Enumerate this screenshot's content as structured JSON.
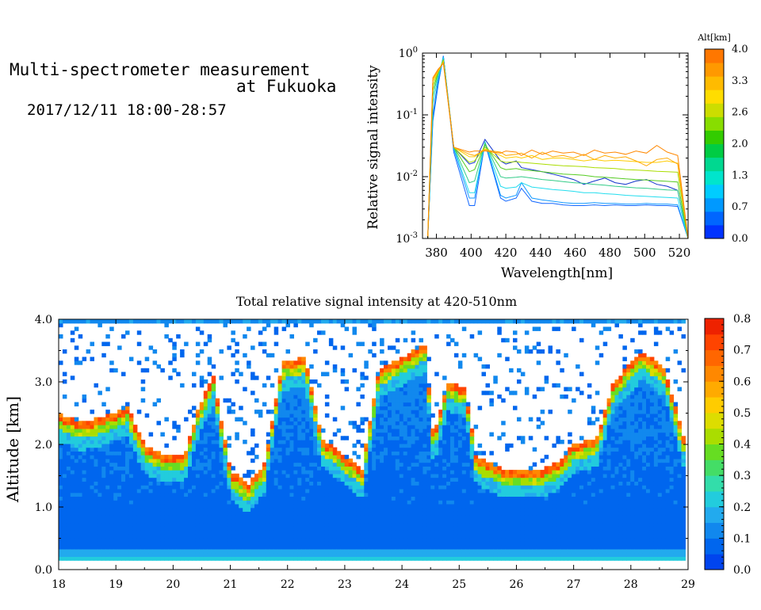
{
  "header": {
    "title_line1": "Multi-spectrometer measurement",
    "title_line2": "at Fukuoka",
    "datetime": "2017/12/11 18:00-28:57"
  },
  "chart_data": [
    {
      "type": "line",
      "xlabel": "Wavelength[nm]",
      "ylabel": "Relative signal intensity",
      "xlim": [
        372,
        525
      ],
      "ylim": [
        0.001,
        1
      ],
      "yscale": "log",
      "x_ticks": [
        "380",
        "400",
        "420",
        "440",
        "460",
        "480",
        "500",
        "520"
      ],
      "y_ticks": [
        "10^-3",
        "10^-2",
        "10^-1",
        "10^0"
      ],
      "x": [
        375,
        378,
        381,
        384,
        390,
        399,
        402,
        408,
        417,
        420,
        426,
        429,
        435,
        441,
        447,
        453,
        459,
        465,
        471,
        477,
        483,
        489,
        495,
        501,
        507,
        513,
        519,
        525
      ],
      "colorbar": {
        "label": "Alt[km]",
        "ticks": [
          "0.0",
          "0.7",
          "1.3",
          "2.0",
          "2.6",
          "3.3",
          "4.0"
        ],
        "colors": [
          "#0033ff",
          "#0066ff",
          "#0099ff",
          "#00ccff",
          "#00e5cc",
          "#00d890",
          "#00cc44",
          "#33cc00",
          "#88dd00",
          "#ccdd00",
          "#ffdd00",
          "#ffbb00",
          "#ff9900",
          "#ff7700"
        ]
      },
      "series": [
        {
          "color": "#1133cc",
          "values": [
            0.001,
            0.1,
            0.35,
            0.9,
            0.03,
            0.016,
            0.017,
            0.04,
            0.018,
            0.016,
            0.018,
            0.014,
            0.013,
            0.012,
            0.011,
            0.01,
            0.009,
            0.0075,
            0.0085,
            0.0095,
            0.008,
            0.0075,
            0.0085,
            0.009,
            0.0075,
            0.007,
            0.006,
            0.001
          ]
        },
        {
          "color": "#1166ff",
          "values": [
            0.001,
            0.08,
            0.3,
            0.9,
            0.025,
            0.0034,
            0.0034,
            0.035,
            0.0045,
            0.004,
            0.0045,
            0.0065,
            0.004,
            0.0037,
            0.0037,
            0.0035,
            0.0034,
            0.0034,
            0.0035,
            0.0034,
            0.0035,
            0.0034,
            0.0034,
            0.0035,
            0.0034,
            0.0034,
            0.0033,
            0.001
          ]
        },
        {
          "color": "#1199ff",
          "values": [
            0.001,
            0.09,
            0.32,
            0.88,
            0.028,
            0.0045,
            0.0045,
            0.037,
            0.005,
            0.0045,
            0.005,
            0.008,
            0.0045,
            0.0042,
            0.004,
            0.0038,
            0.0037,
            0.0037,
            0.0038,
            0.0037,
            0.0037,
            0.0036,
            0.0036,
            0.0037,
            0.0036,
            0.0036,
            0.0035,
            0.001
          ]
        },
        {
          "color": "#22ddee",
          "values": [
            0.001,
            0.15,
            0.4,
            0.85,
            0.03,
            0.0055,
            0.0055,
            0.036,
            0.007,
            0.0065,
            0.0068,
            0.008,
            0.0068,
            0.0065,
            0.0062,
            0.006,
            0.0058,
            0.0055,
            0.0055,
            0.0053,
            0.0052,
            0.005,
            0.0049,
            0.0048,
            0.0047,
            0.0046,
            0.0045,
            0.001
          ]
        },
        {
          "color": "#33cc88",
          "values": [
            0.001,
            0.2,
            0.45,
            0.8,
            0.03,
            0.008,
            0.0085,
            0.035,
            0.01,
            0.0095,
            0.0098,
            0.01,
            0.0095,
            0.009,
            0.0087,
            0.0083,
            0.008,
            0.0078,
            0.0075,
            0.0073,
            0.007,
            0.0068,
            0.0066,
            0.0065,
            0.0063,
            0.0061,
            0.006,
            0.001
          ]
        },
        {
          "color": "#55cc22",
          "values": [
            0.001,
            0.25,
            0.48,
            0.78,
            0.03,
            0.012,
            0.013,
            0.033,
            0.014,
            0.013,
            0.0135,
            0.013,
            0.0125,
            0.012,
            0.0115,
            0.011,
            0.0108,
            0.0105,
            0.01,
            0.0098,
            0.0095,
            0.0092,
            0.009,
            0.0088,
            0.0086,
            0.0084,
            0.0082,
            0.001
          ]
        },
        {
          "color": "#aadd00",
          "values": [
            0.001,
            0.3,
            0.5,
            0.75,
            0.03,
            0.017,
            0.018,
            0.03,
            0.018,
            0.017,
            0.0175,
            0.017,
            0.0165,
            0.016,
            0.0155,
            0.015,
            0.0148,
            0.0145,
            0.014,
            0.0138,
            0.0135,
            0.013,
            0.0128,
            0.0125,
            0.0122,
            0.012,
            0.0118,
            0.001
          ]
        },
        {
          "color": "#ffcc00",
          "values": [
            0.001,
            0.35,
            0.5,
            0.72,
            0.03,
            0.021,
            0.021,
            0.028,
            0.022,
            0.02,
            0.021,
            0.02,
            0.022,
            0.019,
            0.02,
            0.02,
            0.019,
            0.018,
            0.019,
            0.018,
            0.0185,
            0.018,
            0.0175,
            0.017,
            0.017,
            0.018,
            0.0165,
            0.001
          ]
        },
        {
          "color": "#ffaa00",
          "values": [
            0.001,
            0.38,
            0.52,
            0.7,
            0.03,
            0.023,
            0.022,
            0.027,
            0.025,
            0.022,
            0.023,
            0.024,
            0.02,
            0.025,
            0.021,
            0.022,
            0.02,
            0.023,
            0.019,
            0.022,
            0.02,
            0.021,
            0.018,
            0.015,
            0.019,
            0.02,
            0.016,
            0.001
          ]
        },
        {
          "color": "#ff8800",
          "values": [
            0.001,
            0.4,
            0.55,
            0.68,
            0.03,
            0.025,
            0.026,
            0.026,
            0.024,
            0.026,
            0.025,
            0.022,
            0.027,
            0.023,
            0.026,
            0.024,
            0.025,
            0.022,
            0.027,
            0.024,
            0.025,
            0.023,
            0.026,
            0.024,
            0.032,
            0.025,
            0.022,
            0.001
          ]
        }
      ]
    },
    {
      "type": "heatmap",
      "title": "Total relative signal intensity at 420-510nm",
      "ylabel": "Altitude [km]",
      "xlim": [
        18,
        29
      ],
      "ylim": [
        0,
        4
      ],
      "x_ticks": [
        "18",
        "19",
        "20",
        "21",
        "22",
        "23",
        "24",
        "25",
        "26",
        "27",
        "28",
        "29"
      ],
      "y_ticks": [
        "0.0",
        "1.0",
        "2.0",
        "3.0",
        "4.0"
      ],
      "data_x_range": [
        18.0,
        28.95
      ],
      "data_y_range": [
        0.15,
        4.0
      ],
      "colorbar": {
        "ticks": [
          "0.0",
          "0.1",
          "0.2",
          "0.3",
          "0.4",
          "0.5",
          "0.6",
          "0.7",
          "0.8"
        ],
        "range": [
          0,
          0.8
        ],
        "colors": [
          "#0044ee",
          "#0066ee",
          "#1188ee",
          "#22aaee",
          "#22ccdd",
          "#33ddaa",
          "#44dd66",
          "#66dd22",
          "#aadd00",
          "#dddd00",
          "#ffcc00",
          "#ffaa00",
          "#ff8800",
          "#ff6600",
          "#ff4400",
          "#ee2200"
        ]
      },
      "cloud_base_km": [
        {
          "t": 18.0,
          "base": 2.5
        },
        {
          "t": 18.4,
          "base": 2.35
        },
        {
          "t": 18.8,
          "base": 2.45
        },
        {
          "t": 19.2,
          "base": 2.6
        },
        {
          "t": 19.5,
          "base": 2.0
        },
        {
          "t": 19.8,
          "base": 1.85
        },
        {
          "t": 20.2,
          "base": 1.85
        },
        {
          "t": 20.45,
          "base": 2.6
        },
        {
          "t": 20.7,
          "base": 3.1
        },
        {
          "t": 21.0,
          "base": 1.6
        },
        {
          "t": 21.3,
          "base": 1.35
        },
        {
          "t": 21.6,
          "base": 1.7
        },
        {
          "t": 21.9,
          "base": 3.3
        },
        {
          "t": 22.3,
          "base": 3.4
        },
        {
          "t": 22.6,
          "base": 2.1
        },
        {
          "t": 22.9,
          "base": 1.9
        },
        {
          "t": 23.3,
          "base": 1.6
        },
        {
          "t": 23.6,
          "base": 3.2
        },
        {
          "t": 24.4,
          "base": 3.6
        },
        {
          "t": 24.55,
          "base": 2.1
        },
        {
          "t": 24.8,
          "base": 3.0
        },
        {
          "t": 25.1,
          "base": 2.9
        },
        {
          "t": 25.3,
          "base": 1.8
        },
        {
          "t": 25.8,
          "base": 1.6
        },
        {
          "t": 26.4,
          "base": 1.6
        },
        {
          "t": 26.7,
          "base": 1.7
        },
        {
          "t": 27.0,
          "base": 2.0
        },
        {
          "t": 27.4,
          "base": 2.1
        },
        {
          "t": 27.7,
          "base": 3.0
        },
        {
          "t": 28.2,
          "base": 3.5
        },
        {
          "t": 28.6,
          "base": 3.2
        },
        {
          "t": 28.95,
          "base": 2.0
        }
      ]
    }
  ]
}
